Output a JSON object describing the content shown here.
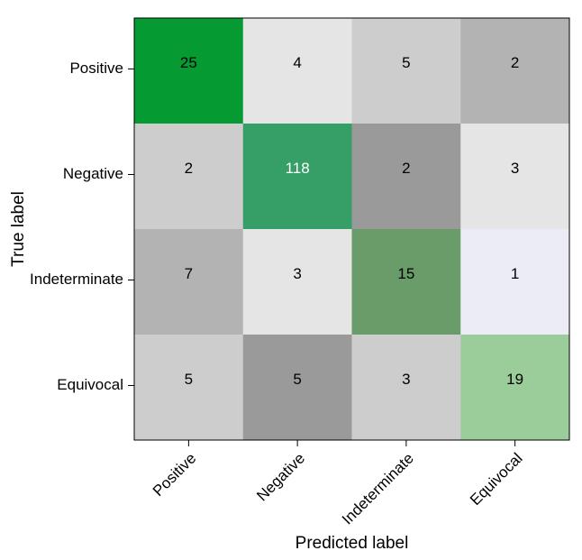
{
  "chart_data": {
    "type": "heatmap",
    "title": "",
    "xlabel": "Predicted label",
    "ylabel": "True label",
    "x_categories": [
      "Positive",
      "Negative",
      "Indeterminate",
      "Equivocal"
    ],
    "y_categories": [
      "Positive",
      "Negative",
      "Indeterminate",
      "Equivocal"
    ],
    "values": [
      [
        25,
        4,
        5,
        2
      ],
      [
        2,
        118,
        2,
        3
      ],
      [
        7,
        3,
        15,
        1
      ],
      [
        5,
        5,
        3,
        19
      ]
    ],
    "cell_colors": [
      [
        "#069a33",
        "#e5e5e5",
        "#cdcdcd",
        "#b3b3b3"
      ],
      [
        "#cdcdcd",
        "#369f68",
        "#9a9a9a",
        "#e5e5e5"
      ],
      [
        "#b3b3b3",
        "#e5e5e5",
        "#699c68",
        "#ececf7"
      ],
      [
        "#cdcdcd",
        "#9a9a9a",
        "#cdcdcd",
        "#9bcd9b"
      ]
    ],
    "value_text_colors": [
      [
        "#000000",
        "#000000",
        "#000000",
        "#000000"
      ],
      [
        "#000000",
        "#ffffff",
        "#000000",
        "#000000"
      ],
      [
        "#000000",
        "#000000",
        "#000000",
        "#000000"
      ],
      [
        "#000000",
        "#000000",
        "#000000",
        "#000000"
      ]
    ],
    "grid": false,
    "legend": "none"
  }
}
